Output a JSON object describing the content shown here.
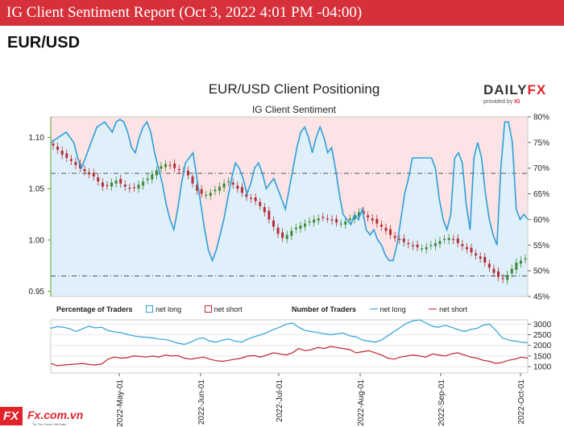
{
  "header": {
    "banner_title": "IG Client Sentiment Report (Oct 3, 2022 4:01 PM -04:00)",
    "pair": "EUR/USD"
  },
  "branding": {
    "logo_text": "DAILY",
    "logo_accent": "FX",
    "logo_sub": "provided by",
    "logo_sub_accent": "IG",
    "footer_badge": "FX",
    "footer_url": "Fx.com.vn",
    "footer_tagline": "Tin Tức Forex Việt Nam"
  },
  "colors": {
    "banner": "#d6303a",
    "net_long": "#2e9fd8",
    "net_short": "#c0262d",
    "long_fill": "#dff0fb",
    "short_fill": "#fbe3e6",
    "candle_up": "#3f8a37",
    "candle_down": "#b52f35"
  },
  "chart_data": [
    {
      "type": "line",
      "title": "EUR/USD Client Positioning",
      "subtitle": "IG Client Sentiment",
      "left_axis": {
        "ticks": [
          "1.10",
          "1.05",
          "1.00",
          "0.95"
        ],
        "tick_values": [
          1.1,
          1.05,
          1.0,
          0.95
        ],
        "range": [
          0.945,
          1.12
        ]
      },
      "right_axis": {
        "ticks": [
          "80%",
          "75%",
          "70%",
          "65%",
          "60%",
          "55%",
          "50%",
          "45%"
        ],
        "tick_values": [
          80,
          75,
          70,
          65,
          60,
          55,
          50,
          45
        ],
        "range": [
          45,
          80
        ]
      },
      "x_axis": {
        "ticks": [
          "2022-May-01",
          "2022-Jun-01",
          "2022-Jul-01",
          "2022-Aug-01",
          "2022-Sep-01",
          "2022-Oct-01"
        ]
      },
      "series": [
        {
          "name": "Percentage of Traders net long",
          "axis": "right",
          "values": [
            75,
            75.5,
            76,
            76.5,
            77,
            76,
            75,
            72,
            70,
            72,
            74,
            76,
            78,
            78.5,
            79,
            78,
            77,
            79,
            79.5,
            79,
            77,
            74,
            73,
            76,
            78,
            79,
            77,
            73,
            70,
            67,
            63,
            60,
            58,
            62,
            67,
            71,
            72,
            73,
            68,
            63,
            58,
            54,
            52,
            54,
            57,
            60,
            64,
            68,
            71,
            70,
            68,
            65,
            67,
            70,
            71,
            69,
            66,
            67,
            68,
            66,
            64,
            62,
            66,
            70,
            74,
            77,
            78,
            76,
            73,
            76,
            78,
            76,
            73,
            74,
            70,
            65,
            61,
            60,
            59,
            61,
            60,
            62,
            58,
            57,
            58,
            56,
            55,
            53,
            52,
            52,
            55,
            60,
            65,
            68,
            72,
            72,
            72,
            72,
            72,
            72,
            70,
            64,
            60,
            58,
            61,
            72,
            73,
            71,
            63,
            58,
            72,
            75,
            72,
            65,
            60,
            57,
            55,
            70,
            79,
            79,
            75,
            62,
            60,
            61,
            60
          ]
        },
        {
          "name": "EUR/USD price",
          "axis": "left",
          "values": [
            1.092,
            1.088,
            1.083,
            1.08,
            1.077,
            1.073,
            1.07,
            1.067,
            1.064,
            1.062,
            1.057,
            1.052,
            1.053,
            1.056,
            1.058,
            1.055,
            1.052,
            1.05,
            1.051,
            1.054,
            1.057,
            1.06,
            1.064,
            1.068,
            1.072,
            1.074,
            1.073,
            1.07,
            1.068,
            1.066,
            1.063,
            1.055,
            1.048,
            1.045,
            1.044,
            1.046,
            1.049,
            1.052,
            1.055,
            1.057,
            1.054,
            1.05,
            1.046,
            1.042,
            1.04,
            1.038,
            1.033,
            1.027,
            1.02,
            1.013,
            1.006,
            1.002,
            1.005,
            1.009,
            1.012,
            1.014,
            1.016,
            1.018,
            1.02,
            1.021,
            1.022,
            1.021,
            1.019,
            1.017,
            1.016,
            1.018,
            1.021,
            1.024,
            1.027,
            1.025,
            1.022,
            1.019,
            1.016,
            1.013,
            1.009,
            1.005,
            1.002,
            1.0,
            0.998,
            0.996,
            0.994,
            0.993,
            0.992,
            0.993,
            0.995,
            0.997,
            0.999,
            1.001,
            1.002,
            1.0,
            0.997,
            0.994,
            0.991,
            0.988,
            0.985,
            0.982,
            0.978,
            0.973,
            0.968,
            0.964,
            0.962,
            0.966,
            0.972,
            0.978,
            0.98,
            0.982
          ]
        }
      ],
      "reference_lines": [
        1.065,
        0.965
      ]
    },
    {
      "type": "line",
      "legend": [
        "Percentage of Traders",
        "net long",
        "net short",
        "Number of Traders",
        "net long",
        "net short"
      ],
      "right_axis": {
        "ticks": [
          "3000",
          "2500",
          "2000",
          "1500",
          "1000"
        ],
        "tick_values": [
          3000,
          2500,
          2000,
          1500,
          1000
        ],
        "range": [
          700,
          3200
        ]
      },
      "series": [
        {
          "name": "net long",
          "values": [
            2800,
            2880,
            2850,
            2780,
            2650,
            2780,
            2900,
            2820,
            2850,
            2700,
            2630,
            2600,
            2520,
            2450,
            2400,
            2380,
            2350,
            2300,
            2280,
            2200,
            2100,
            2050,
            2150,
            2300,
            2350,
            2200,
            2150,
            2250,
            2300,
            2200,
            2150,
            2300,
            2400,
            2500,
            2600,
            2750,
            2850,
            3000,
            3050,
            2850,
            2700,
            2650,
            2600,
            2550,
            2500,
            2550,
            2580,
            2450,
            2400,
            2250,
            2200,
            2150,
            2250,
            2450,
            2650,
            2850,
            3050,
            3150,
            3200,
            3050,
            2900,
            2850,
            2950,
            2850,
            2750,
            2650,
            2750,
            2800,
            2950,
            3000,
            2700,
            2350,
            2250,
            2200,
            2150,
            2120
          ]
        },
        {
          "name": "net short",
          "values": [
            1150,
            1050,
            1080,
            1100,
            1120,
            1150,
            1100,
            1080,
            1120,
            1350,
            1450,
            1400,
            1420,
            1500,
            1480,
            1450,
            1500,
            1450,
            1550,
            1500,
            1520,
            1400,
            1350,
            1400,
            1450,
            1350,
            1280,
            1250,
            1300,
            1350,
            1400,
            1500,
            1520,
            1450,
            1550,
            1650,
            1600,
            1550,
            1650,
            1850,
            1750,
            1800,
            1900,
            1850,
            1950,
            1900,
            1850,
            1800,
            1650,
            1700,
            1750,
            1650,
            1550,
            1400,
            1350,
            1450,
            1500,
            1550,
            1500,
            1450,
            1600,
            1550,
            1500,
            1600,
            1650,
            1550,
            1450,
            1400,
            1300,
            1250,
            1150,
            1200,
            1300,
            1350,
            1450,
            1400
          ]
        }
      ]
    }
  ]
}
